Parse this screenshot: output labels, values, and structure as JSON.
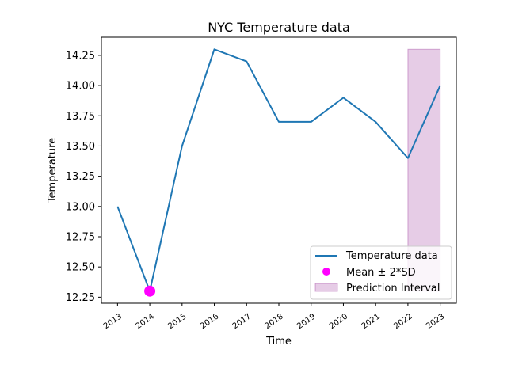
{
  "chart_data": {
    "type": "line",
    "title": "NYC Temperature data",
    "xlabel": "Time",
    "ylabel": "Temperature",
    "x": [
      2013,
      2014,
      2015,
      2016,
      2017,
      2018,
      2019,
      2020,
      2021,
      2022,
      2023
    ],
    "x_tick_labels": [
      "2013",
      "2014",
      "2015",
      "2016",
      "2017",
      "2018",
      "2019",
      "2020",
      "2021",
      "2022",
      "2023"
    ],
    "y_ticks": [
      12.25,
      12.5,
      12.75,
      13.0,
      13.25,
      13.5,
      13.75,
      14.0,
      14.25
    ],
    "y_tick_labels": [
      "12.25",
      "12.50",
      "12.75",
      "13.00",
      "13.25",
      "13.50",
      "13.75",
      "14.00",
      "14.25"
    ],
    "xlim": [
      2012.5,
      2023.5
    ],
    "ylim": [
      12.2,
      14.4
    ],
    "grid": false,
    "series": [
      {
        "name": "Temperature data",
        "type": "line",
        "color": "#1f77b4",
        "values": [
          13.0,
          12.3,
          13.5,
          14.3,
          14.2,
          13.7,
          13.7,
          13.9,
          13.7,
          13.4,
          14.0
        ]
      },
      {
        "name": "Mean ± 2*SD",
        "type": "scatter",
        "color": "#ff00ff",
        "points": [
          {
            "x": 2014,
            "y": 12.3
          }
        ]
      },
      {
        "name": "Prediction Interval",
        "type": "band",
        "color": "#800080",
        "x_range": [
          2022,
          2023
        ],
        "y_range": [
          12.3,
          14.3
        ]
      }
    ],
    "legend": {
      "placement": "lower-right",
      "entries": [
        "Temperature data",
        "Mean ± 2*SD",
        "Prediction Interval"
      ]
    }
  }
}
